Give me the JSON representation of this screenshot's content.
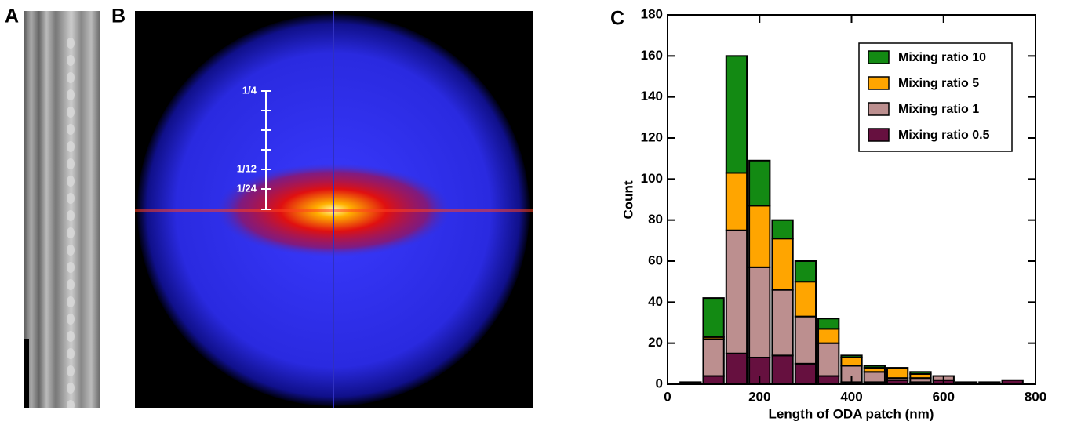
{
  "panels": {
    "a": {
      "label": "A"
    },
    "b": {
      "label": "B",
      "scale_labels": [
        "1/4",
        "1/12",
        "1/24"
      ]
    }
  },
  "chart_data": {
    "type": "histogram",
    "panel_label": "C",
    "xlabel": "Length of ODA patch (nm)",
    "ylabel": "Count",
    "bins": [
      25,
      75,
      125,
      175,
      225,
      275,
      325,
      375,
      425,
      475,
      525,
      575,
      625,
      675,
      725,
      775
    ],
    "series": [
      {
        "name": "Mixing ratio 0.5",
        "color": "#66103f",
        "values": [
          1,
          4,
          15,
          13,
          14,
          10,
          4,
          1,
          1,
          2,
          1,
          2,
          1,
          1,
          2
        ]
      },
      {
        "name": "Mixing ratio 1",
        "color": "#bc8f8f",
        "values": [
          0,
          18,
          60,
          44,
          32,
          23,
          16,
          8,
          5,
          1,
          2,
          2,
          0,
          0,
          0
        ]
      },
      {
        "name": "Mixing ratio 5",
        "color": "#ffa500",
        "values": [
          0,
          1,
          28,
          30,
          25,
          17,
          7,
          4,
          2,
          5,
          2,
          0,
          0,
          0,
          0
        ]
      },
      {
        "name": "Mixing ratio 10",
        "color": "#138a13",
        "values": [
          0,
          19,
          57,
          22,
          9,
          10,
          5,
          1,
          1,
          0,
          1,
          0,
          0,
          0,
          0
        ]
      }
    ],
    "xlim": [
      0,
      800
    ],
    "xticks": [
      0,
      200,
      400,
      600,
      800
    ],
    "ylim": [
      0,
      180
    ],
    "yticks": [
      0,
      20,
      40,
      60,
      80,
      100,
      120,
      140,
      160,
      180
    ],
    "legend": "upper right"
  }
}
